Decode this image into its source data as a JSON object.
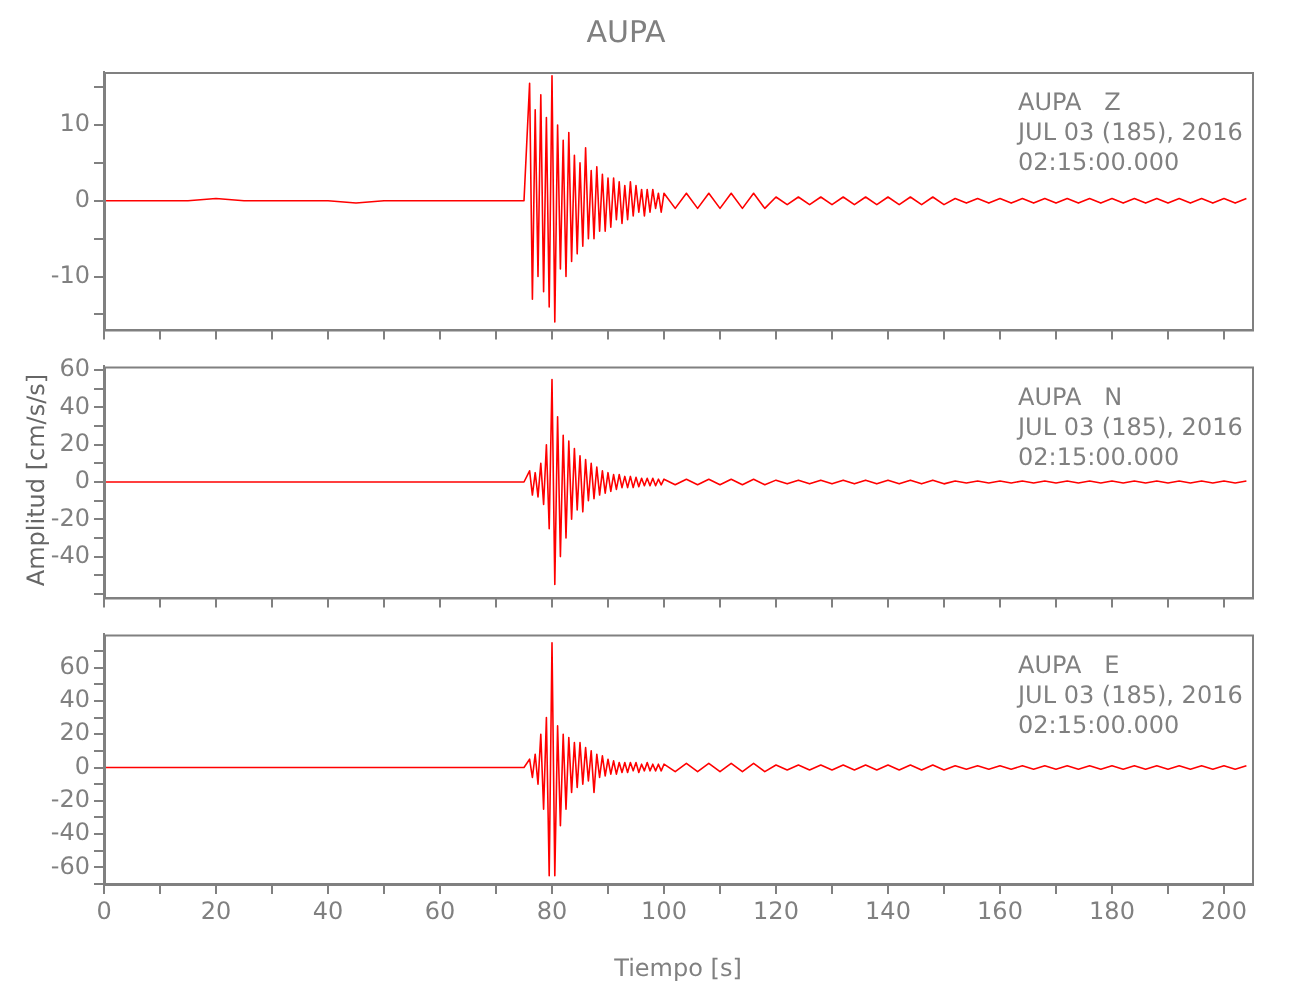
{
  "chart_data": [
    {
      "type": "line",
      "title": "AUPA",
      "annotations": [
        "AUPA   Z",
        "JUL 03 (185), 2016",
        "02:15:00.000"
      ],
      "marker": "none",
      "grid": false,
      "tick_labels": "y",
      "xlim": [
        0,
        205
      ],
      "xticks": [
        {
          "value": 0,
          "label": null
        },
        {
          "value": 10,
          "label": null
        },
        {
          "value": 20,
          "label": null
        },
        {
          "value": 30,
          "label": null
        },
        {
          "value": 40,
          "label": null
        },
        {
          "value": 50,
          "label": null
        },
        {
          "value": 60,
          "label": null
        },
        {
          "value": 70,
          "label": null
        },
        {
          "value": 80,
          "label": null
        },
        {
          "value": 90,
          "label": null
        },
        {
          "value": 100,
          "label": null
        },
        {
          "value": 110,
          "label": null
        },
        {
          "value": 120,
          "label": null
        },
        {
          "value": 130,
          "label": null
        },
        {
          "value": 140,
          "label": null
        },
        {
          "value": 150,
          "label": null
        },
        {
          "value": 160,
          "label": null
        },
        {
          "value": 170,
          "label": null
        },
        {
          "value": 180,
          "label": null
        },
        {
          "value": 190,
          "label": null
        },
        {
          "value": 200,
          "label": null
        }
      ],
      "ylim": [
        -17,
        17
      ],
      "yticks": [
        {
          "value": -15,
          "label": null
        },
        -10,
        {
          "value": -5,
          "label": null
        },
        0,
        {
          "value": 5,
          "label": null
        },
        10,
        {
          "value": 15,
          "label": null
        }
      ],
      "x": [
        0,
        5,
        10,
        15,
        20,
        25,
        30,
        35,
        40,
        45,
        50,
        55,
        60,
        65,
        70,
        75,
        76,
        76.5,
        77,
        77.5,
        78,
        78.5,
        79,
        79.5,
        80,
        80.5,
        81,
        81.5,
        82,
        82.5,
        83,
        83.5,
        84,
        84.5,
        85,
        85.5,
        86,
        86.5,
        87,
        87.5,
        88,
        88.5,
        89,
        89.5,
        90,
        90.5,
        91,
        91.5,
        92,
        92.5,
        93,
        93.5,
        94,
        94.5,
        95,
        95.5,
        96,
        96.5,
        97,
        97.5,
        98,
        98.5,
        99,
        99.5,
        100,
        102,
        104,
        106,
        108,
        110,
        112,
        114,
        116,
        118,
        120,
        122,
        124,
        126,
        128,
        130,
        132,
        134,
        136,
        138,
        140,
        142,
        144,
        146,
        148,
        150,
        152,
        154,
        156,
        158,
        160,
        162,
        164,
        166,
        168,
        170,
        172,
        174,
        176,
        178,
        180,
        182,
        184,
        186,
        188,
        190,
        192,
        194,
        196,
        198,
        200,
        202,
        204
      ],
      "series": [
        {
          "color": "#ff0000",
          "values": [
            0,
            0,
            0,
            0,
            0.3,
            0,
            0,
            0,
            0,
            -0.3,
            0,
            0,
            0,
            0,
            0,
            0,
            15.5,
            -13,
            12,
            -10,
            14,
            -12,
            11,
            -14,
            16.5,
            -16,
            10,
            -9,
            8,
            -10,
            9,
            -8,
            6,
            -7,
            5,
            -6,
            7,
            -5,
            4,
            -5,
            4.5,
            -4,
            3.5,
            -4,
            3,
            -3.5,
            3,
            -2.5,
            2.5,
            -3,
            2,
            -2.5,
            2.5,
            -2,
            2,
            -1.5,
            1.5,
            -2,
            1.5,
            -1.5,
            1.5,
            -1,
            1,
            -1.5,
            1,
            -1,
            1,
            -1,
            1,
            -1,
            1,
            -1,
            1,
            -1,
            0.5,
            -0.5,
            0.5,
            -0.5,
            0.5,
            -0.5,
            0.5,
            -0.5,
            0.5,
            -0.5,
            0.5,
            -0.5,
            0.5,
            -0.5,
            0.5,
            -0.5,
            0.3,
            -0.3,
            0.3,
            -0.3,
            0.3,
            -0.3,
            0.3,
            -0.3,
            0.3,
            -0.3,
            0.3,
            -0.3,
            0.3,
            -0.3,
            0.3,
            -0.3,
            0.3,
            -0.3,
            0.3,
            -0.3,
            0.3,
            -0.3,
            0.3,
            -0.3,
            0.3,
            -0.3,
            0.3
          ]
        }
      ]
    },
    {
      "type": "line",
      "ylabel": "Amplitud [cm/s/s]",
      "annotations": [
        "AUPA   N",
        "JUL 03 (185), 2016",
        "02:15:00.000"
      ],
      "marker": "none",
      "grid": false,
      "tick_labels": "y",
      "xlim": [
        0,
        205
      ],
      "xticks": [
        {
          "value": 0,
          "label": null
        },
        {
          "value": 10,
          "label": null
        },
        {
          "value": 20,
          "label": null
        },
        {
          "value": 30,
          "label": null
        },
        {
          "value": 40,
          "label": null
        },
        {
          "value": 50,
          "label": null
        },
        {
          "value": 60,
          "label": null
        },
        {
          "value": 70,
          "label": null
        },
        {
          "value": 80,
          "label": null
        },
        {
          "value": 90,
          "label": null
        },
        {
          "value": 100,
          "label": null
        },
        {
          "value": 110,
          "label": null
        },
        {
          "value": 120,
          "label": null
        },
        {
          "value": 130,
          "label": null
        },
        {
          "value": 140,
          "label": null
        },
        {
          "value": 150,
          "label": null
        },
        {
          "value": 160,
          "label": null
        },
        {
          "value": 170,
          "label": null
        },
        {
          "value": 180,
          "label": null
        },
        {
          "value": 190,
          "label": null
        },
        {
          "value": 200,
          "label": null
        }
      ],
      "ylim": [
        -62,
        62
      ],
      "yticks": [
        {
          "value": -60,
          "label": null
        },
        {
          "value": -50,
          "label": null
        },
        -40,
        {
          "value": -30,
          "label": null
        },
        -20,
        {
          "value": -10,
          "label": null
        },
        0,
        {
          "value": 10,
          "label": null
        },
        20,
        {
          "value": 30,
          "label": null
        },
        40,
        {
          "value": 50,
          "label": null
        },
        60
      ],
      "x": [
        0,
        5,
        10,
        15,
        20,
        25,
        30,
        35,
        40,
        45,
        50,
        55,
        60,
        65,
        70,
        75,
        76,
        76.5,
        77,
        77.5,
        78,
        78.5,
        79,
        79.5,
        80,
        80.5,
        81,
        81.5,
        82,
        82.5,
        83,
        83.5,
        84,
        84.5,
        85,
        85.5,
        86,
        86.5,
        87,
        87.5,
        88,
        88.5,
        89,
        89.5,
        90,
        90.5,
        91,
        91.5,
        92,
        92.5,
        93,
        93.5,
        94,
        94.5,
        95,
        95.5,
        96,
        96.5,
        97,
        97.5,
        98,
        98.5,
        99,
        99.5,
        100,
        102,
        104,
        106,
        108,
        110,
        112,
        114,
        116,
        118,
        120,
        122,
        124,
        126,
        128,
        130,
        132,
        134,
        136,
        138,
        140,
        142,
        144,
        146,
        148,
        150,
        152,
        154,
        156,
        158,
        160,
        162,
        164,
        166,
        168,
        170,
        172,
        174,
        176,
        178,
        180,
        182,
        184,
        186,
        188,
        190,
        192,
        194,
        196,
        198,
        200,
        202,
        204
      ],
      "series": [
        {
          "color": "#ff0000",
          "values": [
            0,
            0,
            0,
            0,
            0,
            0,
            0,
            0,
            0,
            0,
            0,
            0,
            0,
            0,
            0,
            0,
            6,
            -7,
            5,
            -8,
            10,
            -12,
            20,
            -25,
            55,
            -55,
            35,
            -40,
            25,
            -30,
            22,
            -20,
            18,
            -15,
            14,
            -16,
            12,
            -10,
            10,
            -9,
            8,
            -7,
            6,
            -6,
            5,
            -5,
            4,
            -4,
            4,
            -3,
            3,
            -3,
            3,
            -3,
            2.5,
            -2.5,
            2,
            -2,
            2,
            -2,
            2,
            -2,
            1.5,
            -1.5,
            1.5,
            -1.5,
            1.5,
            -1.5,
            1.5,
            -1.5,
            1.5,
            -1.5,
            1.5,
            -1.5,
            1,
            -1,
            1,
            -1,
            1,
            -1,
            1,
            -1,
            1,
            -1,
            1,
            -1,
            1,
            -1,
            1,
            -1,
            0.5,
            -0.5,
            0.5,
            -0.5,
            0.5,
            -0.5,
            0.5,
            -0.5,
            0.5,
            -0.5,
            0.5,
            -0.5,
            0.5,
            -0.5,
            0.5,
            -0.5,
            0.5,
            -0.5,
            0.5,
            -0.5,
            0.5,
            -0.5,
            0.5,
            -0.5,
            0.5,
            -0.5,
            0.5
          ]
        }
      ]
    },
    {
      "type": "line",
      "xlabel": "Tiempo [s]",
      "annotations": [
        "AUPA   E",
        "JUL 03 (185), 2016",
        "02:15:00.000"
      ],
      "marker": "none",
      "grid": false,
      "xlim": [
        0,
        205
      ],
      "xticks": [
        0,
        {
          "value": 10,
          "label": null
        },
        20,
        {
          "value": 30,
          "label": null
        },
        40,
        {
          "value": 50,
          "label": null
        },
        60,
        {
          "value": 70,
          "label": null
        },
        80,
        {
          "value": 90,
          "label": null
        },
        100,
        {
          "value": 110,
          "label": null
        },
        120,
        {
          "value": 130,
          "label": null
        },
        140,
        {
          "value": 150,
          "label": null
        },
        160,
        {
          "value": 170,
          "label": null
        },
        180,
        {
          "value": 190,
          "label": null
        },
        200
      ],
      "ylim": [
        -70,
        80
      ],
      "yticks": [
        {
          "value": -70,
          "label": null
        },
        -60,
        {
          "value": -50,
          "label": null
        },
        -40,
        {
          "value": -30,
          "label": null
        },
        -20,
        {
          "value": -10,
          "label": null
        },
        0,
        {
          "value": 10,
          "label": null
        },
        20,
        {
          "value": 30,
          "label": null
        },
        40,
        {
          "value": 50,
          "label": null
        },
        60,
        {
          "value": 70,
          "label": null
        }
      ],
      "x": [
        0,
        5,
        10,
        15,
        20,
        25,
        30,
        35,
        40,
        45,
        50,
        55,
        60,
        65,
        70,
        75,
        76,
        76.5,
        77,
        77.5,
        78,
        78.5,
        79,
        79.5,
        80,
        80.5,
        81,
        81.5,
        82,
        82.5,
        83,
        83.5,
        84,
        84.5,
        85,
        85.5,
        86,
        86.5,
        87,
        87.5,
        88,
        88.5,
        89,
        89.5,
        90,
        90.5,
        91,
        91.5,
        92,
        92.5,
        93,
        93.5,
        94,
        94.5,
        95,
        95.5,
        96,
        96.5,
        97,
        97.5,
        98,
        98.5,
        99,
        99.5,
        100,
        102,
        104,
        106,
        108,
        110,
        112,
        114,
        116,
        118,
        120,
        122,
        124,
        126,
        128,
        130,
        132,
        134,
        136,
        138,
        140,
        142,
        144,
        146,
        148,
        150,
        152,
        154,
        156,
        158,
        160,
        162,
        164,
        166,
        168,
        170,
        172,
        174,
        176,
        178,
        180,
        182,
        184,
        186,
        188,
        190,
        192,
        194,
        196,
        198,
        200,
        202,
        204
      ],
      "series": [
        {
          "color": "#ff0000",
          "values": [
            0,
            0,
            0,
            0,
            0,
            0,
            0,
            0,
            0,
            0,
            0,
            0,
            0,
            0,
            0,
            0,
            5,
            -6,
            8,
            -10,
            20,
            -25,
            30,
            -65,
            75,
            -65,
            25,
            -35,
            20,
            -25,
            18,
            -15,
            15,
            -12,
            15,
            -10,
            12,
            -8,
            10,
            -15,
            8,
            -6,
            7,
            -5,
            5,
            -4,
            4,
            -4,
            3,
            -3,
            3,
            -3,
            3,
            -2,
            3,
            -3,
            2,
            -2,
            3,
            -2,
            2,
            -2,
            2,
            -2,
            2,
            -2.5,
            2.5,
            -2.5,
            2.5,
            -2.5,
            2.5,
            -2.5,
            2.5,
            -2.5,
            1.5,
            -1.5,
            1.5,
            -1.5,
            1.5,
            -1.5,
            1.5,
            -1.5,
            1.5,
            -1.5,
            1.5,
            -1.5,
            1.5,
            -1.5,
            1.5,
            -1.5,
            1,
            -1,
            1,
            -1,
            1,
            -1,
            1,
            -1,
            1,
            -1,
            1,
            -1,
            1,
            -1,
            1,
            -1,
            1,
            -1,
            1,
            -1,
            1,
            -1,
            1,
            -1,
            1,
            -1,
            1
          ]
        }
      ]
    }
  ]
}
